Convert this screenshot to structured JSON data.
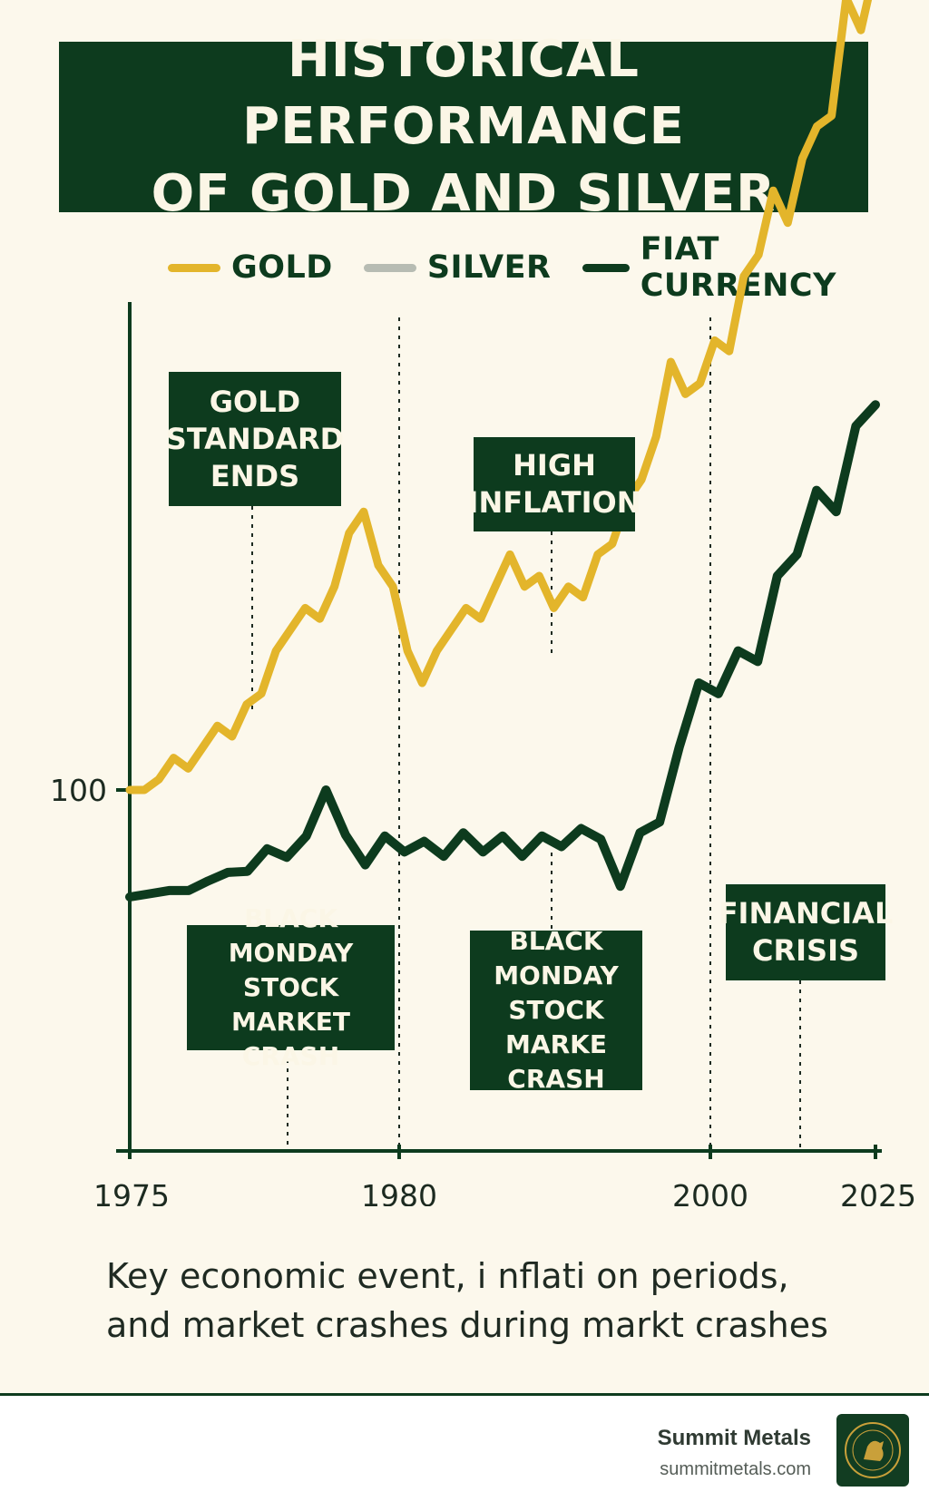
{
  "header": {
    "title_line1": "HISTORICAL PERFORMANCE",
    "title_line2": "OF GOLD AND SILVER"
  },
  "legend": [
    {
      "label": "GOLD",
      "color": "#e3b52b"
    },
    {
      "label": "SILVER",
      "color": "#b7bcb3"
    },
    {
      "label": "FIAT CURRENCY",
      "color": "#0d3b1e"
    }
  ],
  "chart_data": {
    "type": "line",
    "x_ticks": [
      "1975",
      "1980",
      "2000",
      "2025"
    ],
    "y_ticks": [
      "100"
    ],
    "series": [
      {
        "name": "GOLD",
        "color": "#e3b52b",
        "values": [
          100,
          100,
          101,
          103,
          102,
          104,
          106,
          105,
          108,
          109,
          113,
          115,
          117,
          116,
          119,
          124,
          126,
          121,
          119,
          113,
          110,
          113,
          115,
          117,
          116,
          119,
          122,
          119,
          120,
          117,
          119,
          118,
          122,
          123,
          127,
          129,
          133,
          140,
          137,
          138,
          142,
          141,
          148,
          150,
          156,
          153,
          159,
          162,
          163,
          174,
          171,
          177
        ]
      },
      {
        "name": "FIAT CURRENCY",
        "color": "#0d3b1e",
        "values": [
          90,
          90.3,
          90.6,
          90.6,
          91.5,
          92.3,
          92.4,
          94.5,
          93.7,
          95.7,
          100,
          95.8,
          93,
          95.7,
          94.2,
          95.2,
          93.8,
          96,
          94.2,
          95.7,
          93.8,
          95.7,
          94.7,
          96.4,
          95.4,
          91,
          96,
          97,
          104,
          110,
          109,
          113,
          112,
          120,
          122,
          128,
          126,
          134,
          136
        ]
      }
    ],
    "events": [
      {
        "label": "GOLD\nSTANDARD\nENDS"
      },
      {
        "label": "HIGH\nINFLATION"
      },
      {
        "label": "BLACK MONDAY\nSTOCK MARKET\nCRASH"
      },
      {
        "label": "BLACK\nMONDAY\nSTOCK MARKE\nCRASH"
      },
      {
        "label": "FINANCIAL\nCRISIS"
      }
    ],
    "grid": false,
    "legend_position": "top"
  },
  "caption": {
    "line1": "Key economic event, i nflati on periods,",
    "line2": "and market crashes during markt crashes"
  },
  "footer": {
    "brand": "Summit Metals",
    "url": "summitmetals.com"
  }
}
